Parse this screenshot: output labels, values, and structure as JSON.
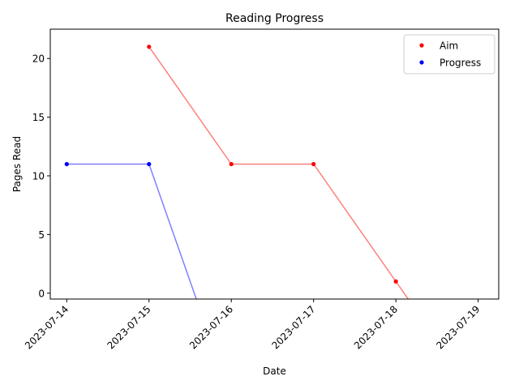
{
  "chart_data": {
    "type": "line",
    "title": "Reading Progress",
    "xlabel": "Date",
    "ylabel": "Pages Read",
    "x_ticks": [
      "2023-07-14",
      "2023-07-15",
      "2023-07-16",
      "2023-07-17",
      "2023-07-18",
      "2023-07-19"
    ],
    "y_ticks": [
      0,
      5,
      10,
      15,
      20
    ],
    "xlim": [
      "2023-07-13T19:12",
      "2023-07-19T06:00"
    ],
    "ylim": [
      -0.5,
      22.5
    ],
    "grid": false,
    "legend_position": "top-right",
    "series": [
      {
        "name": "Aim",
        "marker_color": "#ff0000",
        "line_color": "#ff8080",
        "points": [
          {
            "x": "2023-07-15",
            "y": 21
          },
          {
            "x": "2023-07-16",
            "y": 11
          },
          {
            "x": "2023-07-17",
            "y": 11
          },
          {
            "x": "2023-07-18",
            "y": 1
          }
        ],
        "line_continues_to": {
          "x": "2023-07-19",
          "y": -9
        }
      },
      {
        "name": "Progress",
        "marker_color": "#0000ff",
        "line_color": "#8080ff",
        "points": [
          {
            "x": "2023-07-14",
            "y": 11
          },
          {
            "x": "2023-07-15",
            "y": 11
          }
        ],
        "line_continues_to": {
          "x": "2023-07-16",
          "y": -9
        }
      }
    ]
  }
}
